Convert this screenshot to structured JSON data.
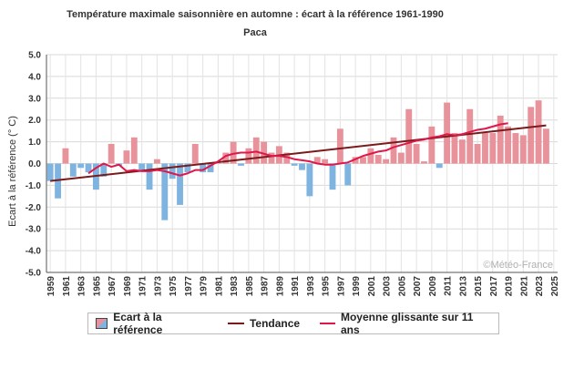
{
  "chart_data": {
    "type": "bar",
    "title": "Température maximale saisonnière en automne : écart à la référence 1961-1990",
    "subtitle": "Paca",
    "ylabel": "Ecart à la référence (° C)",
    "xlabel": "",
    "ylim": [
      -5.0,
      5.0
    ],
    "ytick_labels": [
      "5.0",
      "4.0",
      "3.0",
      "2.0",
      "1.0",
      "0.0",
      "-1.0",
      "-2.0",
      "-3.0",
      "-4.0",
      "-5.0"
    ],
    "xtick_labels": [
      "1959",
      "1961",
      "1963",
      "1965",
      "1967",
      "1969",
      "1971",
      "1973",
      "1975",
      "1977",
      "1979",
      "1981",
      "1983",
      "1985",
      "1987",
      "1989",
      "1991",
      "1993",
      "1995",
      "1997",
      "1999",
      "2001",
      "2003",
      "2005",
      "2007",
      "2009",
      "2011",
      "2013",
      "2015",
      "2017",
      "2019",
      "2021",
      "2023",
      "2025"
    ],
    "grid": true,
    "legend_position": "bottom",
    "series": [
      {
        "name": "Ecart à la référence",
        "kind": "bar",
        "years": [
          1959,
          1960,
          1961,
          1962,
          1963,
          1964,
          1965,
          1966,
          1967,
          1968,
          1969,
          1970,
          1971,
          1972,
          1973,
          1974,
          1975,
          1976,
          1977,
          1978,
          1979,
          1980,
          1981,
          1982,
          1983,
          1984,
          1985,
          1986,
          1987,
          1988,
          1989,
          1990,
          1991,
          1992,
          1993,
          1994,
          1995,
          1996,
          1997,
          1998,
          1999,
          2000,
          2001,
          2002,
          2003,
          2004,
          2005,
          2006,
          2007,
          2008,
          2009,
          2010,
          2011,
          2012,
          2013,
          2014,
          2015,
          2016,
          2017,
          2018,
          2019,
          2020,
          2021,
          2022,
          2023,
          2024
        ],
        "values": [
          -0.8,
          -1.6,
          0.7,
          -0.6,
          -0.2,
          -0.4,
          -1.2,
          -0.6,
          0.9,
          -0.1,
          0.6,
          1.2,
          -0.3,
          -1.2,
          0.2,
          -2.6,
          -0.7,
          -1.9,
          -0.4,
          0.9,
          -0.4,
          -0.4,
          0.0,
          0.5,
          1.0,
          -0.1,
          0.7,
          1.2,
          1.0,
          0.5,
          0.8,
          0.5,
          -0.1,
          -0.3,
          -1.5,
          0.3,
          0.2,
          -1.2,
          1.6,
          -1.0,
          0.3,
          0.3,
          0.7,
          0.4,
          0.2,
          1.2,
          0.5,
          2.5,
          0.9,
          0.1,
          1.7,
          -0.2,
          2.8,
          1.4,
          1.1,
          2.5,
          0.9,
          1.4,
          1.4,
          2.2,
          1.7,
          1.4,
          1.3,
          2.6,
          2.9,
          1.6
        ],
        "positive_color": "#e8939b",
        "negative_color": "#80b4e0"
      },
      {
        "name": "Tendance",
        "kind": "line",
        "x": [
          1959,
          2024
        ],
        "values": [
          -0.8,
          1.75
        ],
        "color": "#7a1a1a"
      },
      {
        "name": "Moyenne glissante sur 11 ans",
        "kind": "line",
        "x": [
          1964,
          1965,
          1966,
          1967,
          1968,
          1969,
          1970,
          1971,
          1972,
          1973,
          1974,
          1975,
          1976,
          1977,
          1978,
          1979,
          1980,
          1981,
          1982,
          1983,
          1984,
          1985,
          1986,
          1987,
          1988,
          1989,
          1990,
          1991,
          1992,
          1993,
          1994,
          1995,
          1996,
          1997,
          1998,
          1999,
          2000,
          2001,
          2002,
          2003,
          2004,
          2005,
          2006,
          2007,
          2008,
          2009,
          2010,
          2011,
          2012,
          2013,
          2014,
          2015,
          2016,
          2017,
          2018,
          2019
        ],
        "values": [
          -0.45,
          -0.2,
          0.0,
          -0.15,
          -0.05,
          -0.35,
          -0.3,
          -0.35,
          -0.35,
          -0.3,
          -0.35,
          -0.45,
          -0.55,
          -0.45,
          -0.3,
          -0.3,
          -0.1,
          0.1,
          0.35,
          0.45,
          0.5,
          0.5,
          0.55,
          0.45,
          0.35,
          0.35,
          0.3,
          0.2,
          0.15,
          0.1,
          0.0,
          -0.05,
          -0.05,
          0.0,
          0.05,
          0.2,
          0.35,
          0.45,
          0.55,
          0.6,
          0.75,
          0.85,
          0.95,
          1.05,
          1.1,
          1.2,
          1.25,
          1.35,
          1.3,
          1.35,
          1.45,
          1.55,
          1.6,
          1.7,
          1.8,
          1.85
        ],
        "color": "#e0174a"
      }
    ],
    "watermark": "©Météo-France"
  }
}
